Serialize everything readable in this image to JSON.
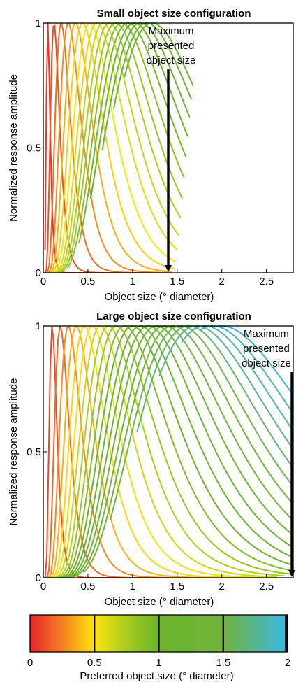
{
  "chart_data": [
    {
      "type": "line",
      "title": "Small object size configuration",
      "xlabel": "Object size (° diameter)",
      "ylabel": "Normalized response amplitude",
      "xlim": [
        0,
        2.8
      ],
      "ylim": [
        0,
        1
      ],
      "xticks": [
        0,
        0.5,
        1,
        1.5,
        2,
        2.5
      ],
      "xtick_labels": [
        "0",
        "0.5",
        "1",
        "1.5",
        "2",
        "2.5"
      ],
      "yticks": [
        0,
        0.5,
        1
      ],
      "ytick_labels": [
        "0",
        "0.5",
        "1"
      ],
      "grid": false,
      "annotation": {
        "lines": [
          "Maximum",
          "presented",
          "object size"
        ],
        "x": 1.4
      },
      "series": [
        {
          "preferred": 0.05,
          "start": 0.02,
          "end": 1.4
        },
        {
          "preferred": 0.12,
          "start": 0.02,
          "end": 1.4
        },
        {
          "preferred": 0.2,
          "start": 0.02,
          "end": 1.4
        },
        {
          "preferred": 0.28,
          "start": 0.02,
          "end": 1.42
        },
        {
          "preferred": 0.36,
          "start": 0.02,
          "end": 1.44
        },
        {
          "preferred": 0.44,
          "start": 0.02,
          "end": 1.46
        },
        {
          "preferred": 0.52,
          "start": 0.02,
          "end": 1.48
        },
        {
          "preferred": 0.6,
          "start": 0.02,
          "end": 1.5
        },
        {
          "preferred": 0.67,
          "start": 0.05,
          "end": 1.52
        },
        {
          "preferred": 0.74,
          "start": 0.08,
          "end": 1.54
        },
        {
          "preferred": 0.81,
          "start": 0.15,
          "end": 1.56
        },
        {
          "preferred": 0.88,
          "start": 0.27,
          "end": 1.58
        },
        {
          "preferred": 0.95,
          "start": 0.4,
          "end": 1.6
        },
        {
          "preferred": 1.02,
          "start": 0.53,
          "end": 1.62
        },
        {
          "preferred": 1.09,
          "start": 0.66,
          "end": 1.64
        },
        {
          "preferred": 1.16,
          "start": 0.79,
          "end": 1.66
        },
        {
          "preferred": 1.22,
          "start": 0.91,
          "end": 1.68
        }
      ]
    },
    {
      "type": "line",
      "title": "Large object size configuration",
      "xlabel": "Object size (° diameter)",
      "ylabel": "Normalized response amplitude",
      "xlim": [
        0,
        2.8
      ],
      "ylim": [
        0,
        1
      ],
      "xticks": [
        0,
        0.5,
        1,
        1.5,
        2,
        2.5
      ],
      "xtick_labels": [
        "0",
        "0.5",
        "1",
        "1.5",
        "2",
        "2.5"
      ],
      "yticks": [
        0,
        0.5,
        1
      ],
      "ytick_labels": [
        "0",
        "0.5",
        "1"
      ],
      "grid": false,
      "annotation": {
        "lines": [
          "Maximum",
          "presented",
          "object size"
        ],
        "x": 2.78
      },
      "series": [
        {
          "preferred": 0.1,
          "start": 0.02,
          "end": 1.75
        },
        {
          "preferred": 0.19,
          "start": 0.02,
          "end": 1.9
        },
        {
          "preferred": 0.28,
          "start": 0.02,
          "end": 2.05
        },
        {
          "preferred": 0.37,
          "start": 0.02,
          "end": 2.2
        },
        {
          "preferred": 0.46,
          "start": 0.02,
          "end": 2.35
        },
        {
          "preferred": 0.55,
          "start": 0.02,
          "end": 2.5
        },
        {
          "preferred": 0.64,
          "start": 0.02,
          "end": 2.62
        },
        {
          "preferred": 0.73,
          "start": 0.02,
          "end": 2.7
        },
        {
          "preferred": 0.82,
          "start": 0.02,
          "end": 2.76
        },
        {
          "preferred": 0.91,
          "start": 0.02,
          "end": 2.78
        },
        {
          "preferred": 1.0,
          "start": 0.02,
          "end": 2.78
        },
        {
          "preferred": 1.09,
          "start": 0.02,
          "end": 2.78
        },
        {
          "preferred": 1.18,
          "start": 0.02,
          "end": 2.78
        },
        {
          "preferred": 1.27,
          "start": 0.02,
          "end": 2.78
        },
        {
          "preferred": 1.36,
          "start": 0.15,
          "end": 2.78
        },
        {
          "preferred": 1.45,
          "start": 0.45,
          "end": 2.78
        },
        {
          "preferred": 1.54,
          "start": 0.75,
          "end": 2.78
        },
        {
          "preferred": 1.63,
          "start": 1.05,
          "end": 2.78
        },
        {
          "preferred": 1.72,
          "start": 1.3,
          "end": 2.78
        },
        {
          "preferred": 1.81,
          "start": 1.55,
          "end": 2.78
        },
        {
          "preferred": 1.9,
          "start": 1.75,
          "end": 2.78
        },
        {
          "preferred": 2.0,
          "start": 1.95,
          "end": 2.78
        }
      ]
    }
  ],
  "colorbar": {
    "label": "Preferred object size (° diameter)",
    "range": [
      0,
      2
    ],
    "ticks": [
      0,
      0.5,
      1,
      1.5,
      2
    ],
    "tick_labels": [
      "0",
      "0.5",
      "1",
      "1.5",
      "2"
    ],
    "divider_values": [
      0.5,
      1,
      1.5,
      2
    ],
    "color_stops": [
      {
        "value": 0,
        "color": "#e8242a"
      },
      {
        "value": 0.25,
        "color": "#f08020"
      },
      {
        "value": 0.5,
        "color": "#ffe60a"
      },
      {
        "value": 0.75,
        "color": "#a8cc1e"
      },
      {
        "value": 1.0,
        "color": "#6ab42a"
      },
      {
        "value": 1.5,
        "color": "#72b43e"
      },
      {
        "value": 2.0,
        "color": "#3ab6e6"
      }
    ]
  }
}
